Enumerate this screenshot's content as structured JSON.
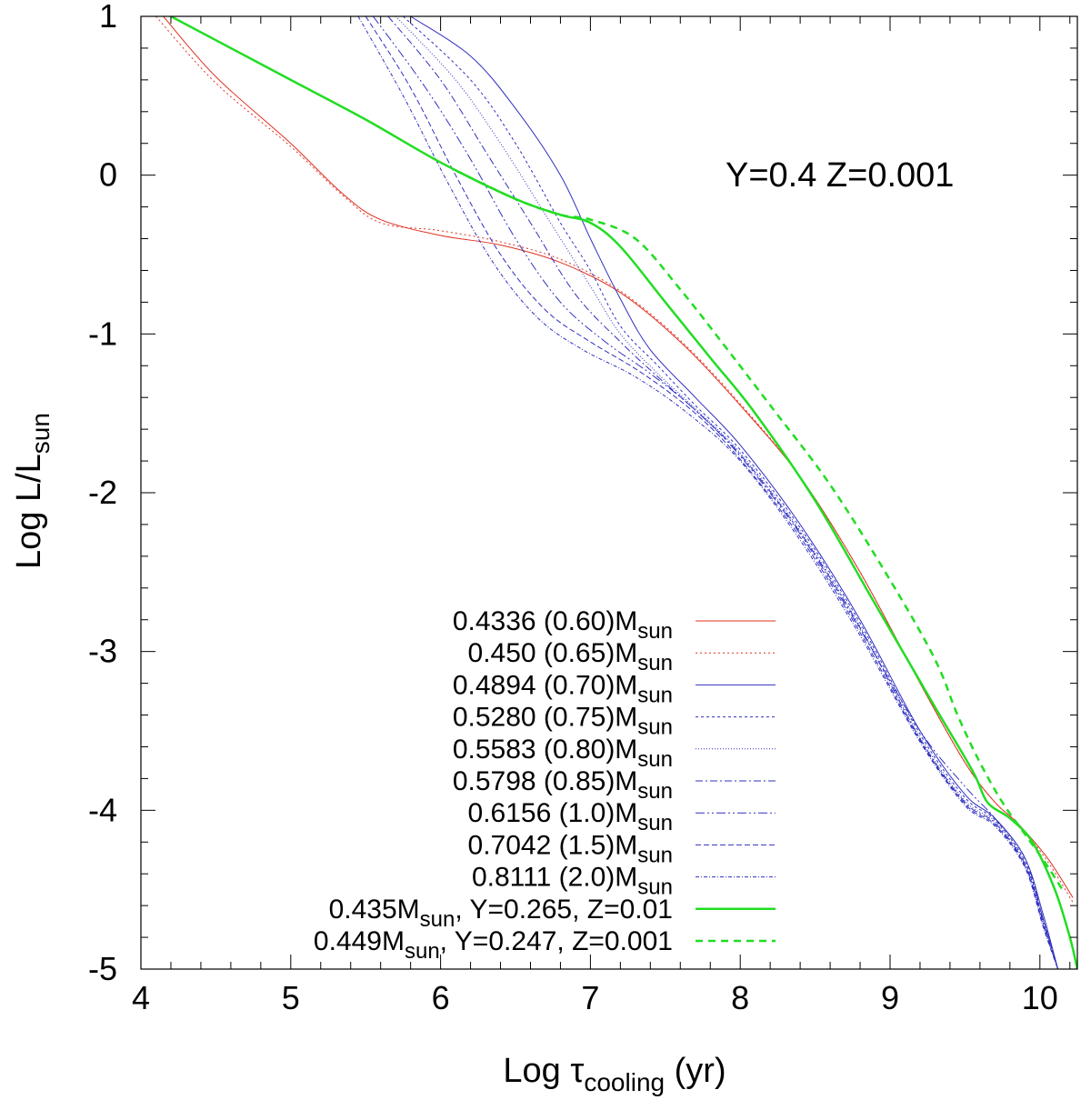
{
  "chart_data": {
    "type": "line",
    "title": "",
    "annotation": "Y=0.4  Z=0.001",
    "xlabel": {
      "main": "Log ",
      "greek": "τ",
      "sub": "cooling",
      "tail": " (yr)"
    },
    "ylabel": {
      "main": "Log L/L",
      "sub": "sun"
    },
    "xlim": [
      4,
      10.25
    ],
    "ylim": [
      -5,
      1
    ],
    "xticks": [
      4,
      5,
      6,
      7,
      8,
      9,
      10
    ],
    "yticks": [
      1,
      0,
      -1,
      -2,
      -3,
      -4,
      -5
    ],
    "legend_position": "bottom-center",
    "series": [
      {
        "name": "0.4336 (0.60)M_sun",
        "label_main": "0.4336 (0.60)M",
        "label_sub": "sun",
        "label_tail": "",
        "color": "#e03020",
        "width": 1,
        "dash": "",
        "x": [
          4.15,
          4.5,
          5.0,
          5.35,
          5.6,
          6.0,
          6.4,
          6.8,
          7.2,
          7.6,
          8.0,
          8.4,
          8.8,
          9.2,
          9.5,
          9.7,
          9.85,
          10.05,
          10.22
        ],
        "y": [
          1.0,
          0.62,
          0.2,
          -0.12,
          -0.28,
          -0.38,
          -0.44,
          -0.55,
          -0.74,
          -1.05,
          -1.45,
          -1.9,
          -2.5,
          -3.2,
          -3.7,
          -3.95,
          -4.08,
          -4.3,
          -4.55
        ]
      },
      {
        "name": "0.450 (0.65)M_sun",
        "label_main": "0.450 (0.65)M",
        "label_sub": "sun",
        "label_tail": "",
        "color": "#e03020",
        "width": 1,
        "dash": "2 3",
        "x": [
          4.1,
          4.5,
          5.0,
          5.35,
          5.6,
          6.0,
          6.4,
          6.8,
          7.2,
          7.6,
          8.0,
          8.4,
          8.8,
          9.2,
          9.5,
          9.7,
          9.85,
          10.05,
          10.22
        ],
        "y": [
          1.0,
          0.58,
          0.18,
          -0.13,
          -0.3,
          -0.35,
          -0.42,
          -0.53,
          -0.73,
          -1.04,
          -1.44,
          -1.9,
          -2.5,
          -3.2,
          -3.7,
          -3.95,
          -4.08,
          -4.32,
          -4.58
        ]
      },
      {
        "name": "0.4894 (0.70)M_sun",
        "label_main": "0.4894 (0.70)M",
        "label_sub": "sun",
        "label_tail": "",
        "color": "#3030c0",
        "width": 1,
        "dash": "",
        "x": [
          5.8,
          6.2,
          6.5,
          6.8,
          7.0,
          7.2,
          7.4,
          7.7,
          8.0,
          8.4,
          8.8,
          9.2,
          9.5,
          9.7,
          9.9,
          10.02,
          10.12
        ],
        "y": [
          1.0,
          0.75,
          0.42,
          0.0,
          -0.4,
          -0.78,
          -1.1,
          -1.4,
          -1.7,
          -2.2,
          -2.8,
          -3.5,
          -3.9,
          -4.05,
          -4.3,
          -4.65,
          -5.0
        ]
      },
      {
        "name": "0.5280 (0.75)M_sun",
        "label_main": "0.5280 (0.75)M",
        "label_sub": "sun",
        "label_tail": "",
        "color": "#3030c0",
        "width": 1,
        "dash": "3 3",
        "x": [
          5.75,
          6.2,
          6.5,
          6.8,
          7.0,
          7.2,
          7.45,
          7.7,
          8.0,
          8.4,
          8.8,
          9.2,
          9.5,
          9.7,
          9.9,
          10.02,
          10.12
        ],
        "y": [
          1.0,
          0.6,
          0.2,
          -0.3,
          -0.6,
          -0.95,
          -1.2,
          -1.45,
          -1.73,
          -2.22,
          -2.82,
          -3.52,
          -3.92,
          -4.06,
          -4.32,
          -4.68,
          -5.0
        ]
      },
      {
        "name": "0.5583 (0.80)M_sun",
        "label_main": "0.5583 (0.80)M",
        "label_sub": "sun",
        "label_tail": "",
        "color": "#3030c0",
        "width": 1,
        "dash": "1 2",
        "x": [
          5.7,
          6.1,
          6.4,
          6.7,
          7.0,
          7.2,
          7.45,
          7.7,
          8.0,
          8.4,
          8.8,
          9.2,
          9.5,
          9.7,
          9.9,
          10.02,
          10.12
        ],
        "y": [
          1.0,
          0.6,
          0.2,
          -0.25,
          -0.7,
          -1.0,
          -1.25,
          -1.47,
          -1.75,
          -2.24,
          -2.84,
          -3.54,
          -3.94,
          -4.07,
          -4.33,
          -4.7,
          -5.0
        ]
      },
      {
        "name": "0.5798 (0.85)M_sun",
        "label_main": "0.5798 (0.85)M",
        "label_sub": "sun",
        "label_tail": "",
        "color": "#3030c0",
        "width": 1,
        "dash": "8 3 2 3",
        "x": [
          5.65,
          6.0,
          6.3,
          6.6,
          6.9,
          7.2,
          7.45,
          7.7,
          8.0,
          8.4,
          8.8,
          9.2,
          9.5,
          9.7,
          9.9,
          10.02,
          10.12
        ],
        "y": [
          1.0,
          0.6,
          0.15,
          -0.3,
          -0.75,
          -1.05,
          -1.27,
          -1.48,
          -1.76,
          -2.25,
          -2.85,
          -3.55,
          -3.95,
          -4.08,
          -4.34,
          -4.7,
          -5.0
        ]
      },
      {
        "name": "0.6156 (1.0)M_sun",
        "label_main": "0.6156 (1.0)M",
        "label_sub": "sun",
        "label_tail": "",
        "color": "#3030c0",
        "width": 1,
        "dash": "10 3 2 3 2 3",
        "x": [
          5.55,
          5.9,
          6.2,
          6.5,
          6.8,
          7.1,
          7.4,
          7.7,
          8.0,
          8.4,
          8.8,
          9.2,
          9.5,
          9.7,
          9.9,
          10.02,
          10.12
        ],
        "y": [
          1.0,
          0.55,
          0.1,
          -0.4,
          -0.8,
          -1.05,
          -1.25,
          -1.48,
          -1.77,
          -2.26,
          -2.86,
          -3.5,
          -3.85,
          -4.05,
          -4.3,
          -4.68,
          -5.0
        ]
      },
      {
        "name": "0.7042 (1.5)M_sun",
        "label_main": "0.7042 (1.5)M",
        "label_sub": "sun",
        "label_tail": "",
        "color": "#3030c0",
        "width": 1,
        "dash": "6 3",
        "x": [
          5.5,
          5.8,
          6.1,
          6.4,
          6.7,
          7.0,
          7.35,
          7.7,
          8.0,
          8.4,
          8.8,
          9.2,
          9.5,
          9.7,
          9.9,
          10.02,
          10.12
        ],
        "y": [
          1.0,
          0.55,
          0.0,
          -0.5,
          -0.85,
          -1.05,
          -1.25,
          -1.5,
          -1.79,
          -2.28,
          -2.88,
          -3.56,
          -3.96,
          -4.09,
          -4.35,
          -4.72,
          -5.0
        ]
      },
      {
        "name": "0.8111 (2.0)M_sun",
        "label_main": "0.8111 (2.0)M",
        "label_sub": "sun",
        "label_tail": "",
        "color": "#3030c0",
        "width": 1,
        "dash": "4 2 1 2",
        "x": [
          5.45,
          5.75,
          6.05,
          6.35,
          6.65,
          6.95,
          7.3,
          7.65,
          8.0,
          8.4,
          8.8,
          9.2,
          9.5,
          9.7,
          9.9,
          10.02,
          10.12
        ],
        "y": [
          1.0,
          0.5,
          -0.05,
          -0.55,
          -0.9,
          -1.1,
          -1.27,
          -1.5,
          -1.8,
          -2.3,
          -2.9,
          -3.57,
          -3.97,
          -4.1,
          -4.36,
          -4.73,
          -5.0
        ]
      },
      {
        "name": "0.435M_sun, Y=0.265, Z=0.01",
        "label_main": "0.435M",
        "label_sub": "sun",
        "label_tail": ", Y=0.265, Z=0.01",
        "color": "#22dd22",
        "width": 2.5,
        "dash": "",
        "x": [
          4.2,
          4.5,
          5.0,
          5.5,
          6.0,
          6.5,
          6.8,
          7.0,
          7.2,
          7.5,
          7.8,
          8.1,
          8.5,
          8.9,
          9.3,
          9.55,
          9.65,
          9.8,
          9.95,
          10.1,
          10.2,
          10.25
        ],
        "y": [
          1.0,
          0.85,
          0.6,
          0.35,
          0.08,
          -0.15,
          -0.25,
          -0.3,
          -0.45,
          -0.8,
          -1.15,
          -1.5,
          -2.05,
          -2.7,
          -3.35,
          -3.75,
          -3.95,
          -4.05,
          -4.2,
          -4.5,
          -4.8,
          -5.0
        ]
      },
      {
        "name": "0.449M_sun, Y=0.247, Z=0.001",
        "label_main": "0.449M",
        "label_sub": "sun",
        "label_tail": ", Y=0.247, Z=0.001",
        "color": "#22dd22",
        "width": 2.5,
        "dash": "8 6",
        "x": [
          6.1,
          6.5,
          6.8,
          7.0,
          7.3,
          7.6,
          7.9,
          8.2,
          8.6,
          9.0,
          9.3,
          9.45,
          9.6,
          9.75,
          9.9,
          10.05,
          10.15
        ],
        "y": [
          0.03,
          -0.15,
          -0.25,
          -0.28,
          -0.4,
          -0.72,
          -1.08,
          -1.45,
          -1.95,
          -2.55,
          -3.05,
          -3.4,
          -3.7,
          -3.95,
          -4.15,
          -4.35,
          -4.5
        ]
      }
    ]
  }
}
